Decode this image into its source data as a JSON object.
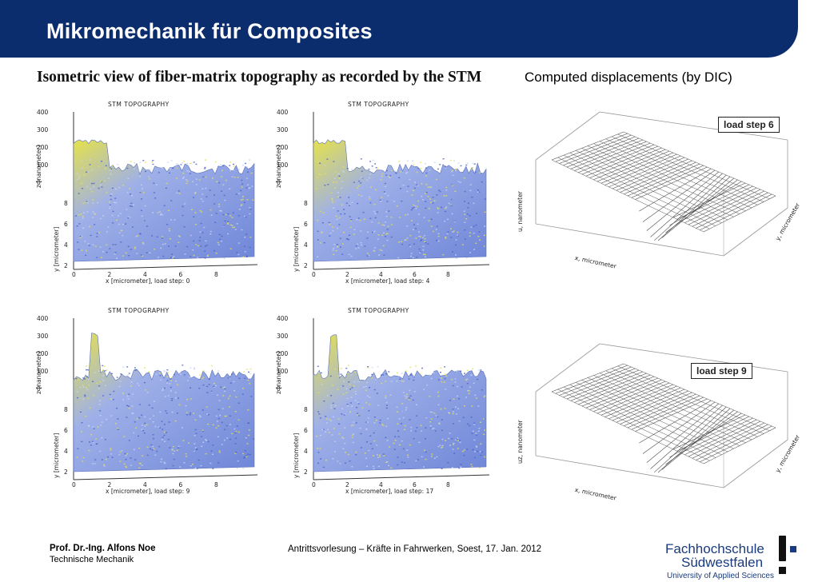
{
  "slide": {
    "title": "Mikromechanik für Composites",
    "left_heading": "Isometric view of fiber-matrix topography as recorded by the STM",
    "right_heading": "Computed displacements (by DIC)"
  },
  "stm_plots": [
    {
      "title": "STM TOPOGRAPHY",
      "x_label": "x  [micrometer],  load step: 0",
      "y_label": "y  [micrometer]",
      "z_label": "z [nanometer]",
      "load_step": 0,
      "x_ticks": [
        "0",
        "2",
        "4",
        "6",
        "8"
      ],
      "z_ticks": [
        "400",
        "300",
        "200",
        "100",
        "0"
      ],
      "y_ticks": [
        "8",
        "6",
        "4",
        "2"
      ]
    },
    {
      "title": "STM TOPOGRAPHY",
      "x_label": "x  [micrometer],  load step: 4",
      "y_label": "y  [micrometer]",
      "z_label": "z [nanometer]",
      "load_step": 4,
      "x_ticks": [
        "0",
        "2",
        "4",
        "6",
        "8"
      ],
      "z_ticks": [
        "400",
        "300",
        "200",
        "100",
        "0"
      ],
      "y_ticks": [
        "8",
        "6",
        "4",
        "2"
      ]
    },
    {
      "title": "STM TOPOGRAPHY",
      "x_label": "x  [micrometer],  load step: 9",
      "y_label": "y  [micrometer]",
      "z_label": "z [nanometer]",
      "load_step": 9,
      "x_ticks": [
        "0",
        "2",
        "4",
        "6",
        "8"
      ],
      "z_ticks": [
        "400",
        "300",
        "200",
        "100",
        "0"
      ],
      "y_ticks": [
        "8",
        "6",
        "4",
        "2"
      ]
    },
    {
      "title": "STM TOPOGRAPHY",
      "x_label": "x  [micrometer],  load step: 17",
      "y_label": "y  [micrometer]",
      "z_label": "z [nanometer]",
      "load_step": 17,
      "x_ticks": [
        "0",
        "2",
        "4",
        "6",
        "8"
      ],
      "z_ticks": [
        "400",
        "300",
        "200",
        "100",
        "0"
      ],
      "y_ticks": [
        "8",
        "6",
        "4",
        "2"
      ]
    }
  ],
  "dic_plots": [
    {
      "label": "load step 6",
      "z_label": "u, nanometer",
      "x_label": "x, micrometer",
      "y_label": "y, micrometer"
    },
    {
      "label": "load step 9",
      "z_label": "uz, nanometer",
      "x_label": "x, micrometer",
      "y_label": "y, micrometer"
    }
  ],
  "footer": {
    "author": "Prof. Dr.-Ing. Alfons Noe",
    "department": "Technische Mechanik",
    "event": "Antrittsvorlesung – Kräfte in Fahrwerken,  Soest, 17. Jan. 2012"
  },
  "logo": {
    "line1": "Fachhochschule",
    "line2": "Südwestfalen",
    "line3": "University of Applied Sciences",
    "accent_color": "#1a3b7d"
  },
  "colors": {
    "title_bar": "#0b2d6e",
    "topography_low": "#6f86d8",
    "topography_high": "#e6e24a"
  }
}
